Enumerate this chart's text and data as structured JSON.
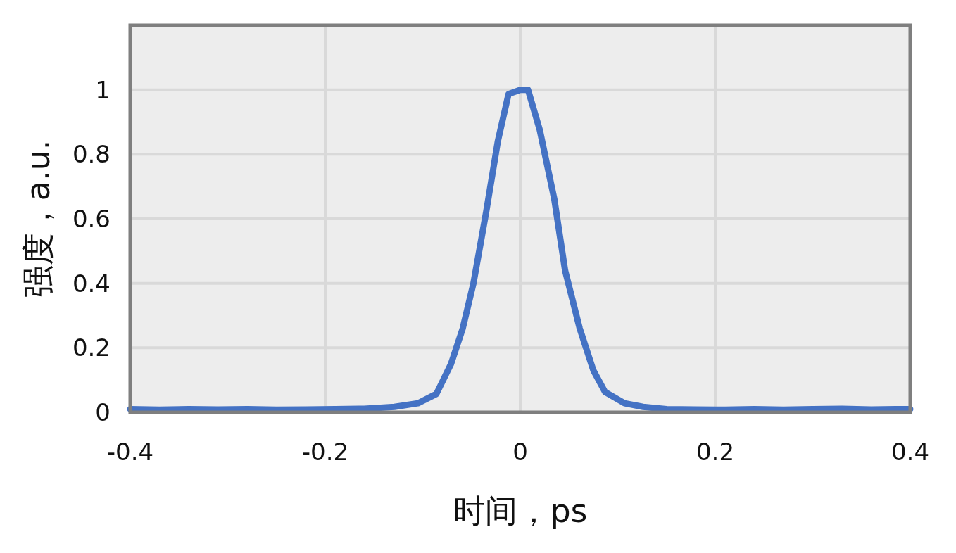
{
  "chart_data": {
    "type": "line",
    "xlabel": "时间，ps",
    "ylabel": "强度，a.u.",
    "x": [
      -0.4,
      -0.37,
      -0.34,
      -0.31,
      -0.28,
      -0.25,
      -0.22,
      -0.19,
      -0.16,
      -0.129,
      -0.105,
      -0.086,
      -0.071,
      -0.059,
      -0.048,
      -0.035,
      -0.023,
      -0.012,
      0,
      0.008,
      0.02,
      0.035,
      0.046,
      0.061,
      0.075,
      0.087,
      0.107,
      0.126,
      0.15,
      0.18,
      0.21,
      0.24,
      0.27,
      0.3,
      0.33,
      0.36,
      0.4
    ],
    "series": [
      {
        "color": "#4472c4",
        "values": [
          0.01,
          0.008,
          0.01,
          0.009,
          0.01,
          0.008,
          0.009,
          0.01,
          0.011,
          0.017,
          0.028,
          0.057,
          0.15,
          0.26,
          0.4,
          0.62,
          0.84,
          0.987,
          1.0,
          1.0,
          0.876,
          0.66,
          0.44,
          0.26,
          0.13,
          0.063,
          0.028,
          0.017,
          0.01,
          0.009,
          0.008,
          0.01,
          0.008,
          0.01,
          0.011,
          0.009,
          0.01
        ]
      }
    ],
    "xlim": [
      -0.4,
      0.4
    ],
    "xticks": [
      -0.4,
      -0.2,
      0,
      0.2,
      0.4
    ],
    "ylim": [
      0,
      1.2
    ],
    "yticks": [
      0,
      0.2,
      0.4,
      0.6,
      0.8,
      1
    ],
    "grid": true,
    "marker": "none",
    "line_style": "solid"
  }
}
